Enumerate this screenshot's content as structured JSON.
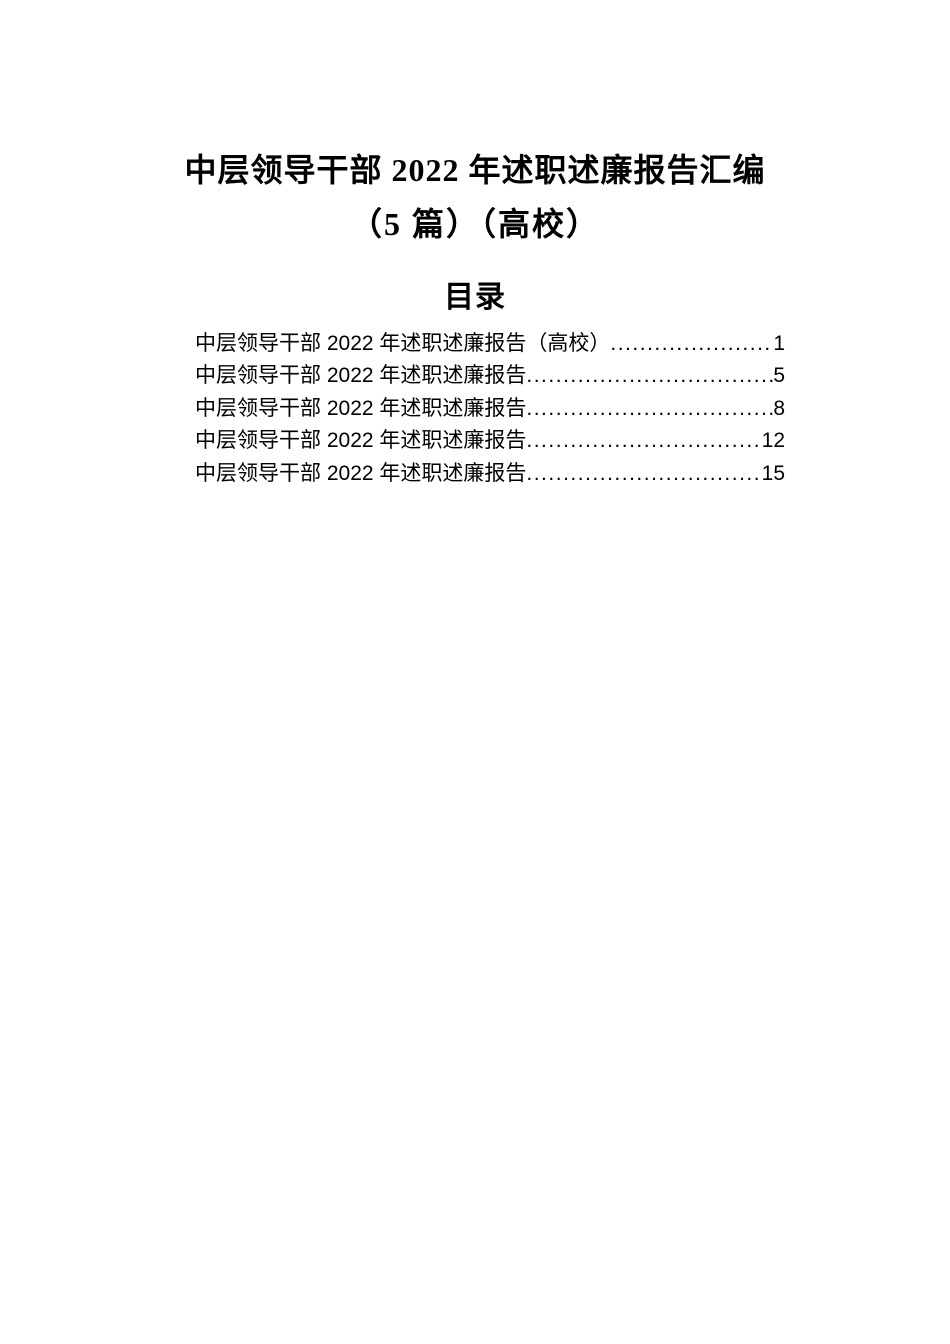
{
  "title": {
    "line1": "中层领导干部 2022 年述职述廉报告汇编",
    "line2": "（5 篇）（高校）"
  },
  "toc": {
    "heading": "目录",
    "entries": [
      {
        "label": "中层领导干部 2022 年述职述廉报告（高校）",
        "page": "1"
      },
      {
        "label": "中层领导干部 2022 年述职述廉报告",
        "page": "5"
      },
      {
        "label": "中层领导干部 2022 年述职述廉报告",
        "page": "8"
      },
      {
        "label": "中层领导干部 2022 年述职述廉报告",
        "page": "12"
      },
      {
        "label": "中层领导干部 2022 年述职述廉报告",
        "page": "15"
      }
    ]
  },
  "colors": {
    "background": "#ffffff",
    "text": "#000000"
  },
  "typography": {
    "title_fontsize": 32,
    "toc_heading_fontsize": 30,
    "toc_entry_fontsize": 21
  }
}
